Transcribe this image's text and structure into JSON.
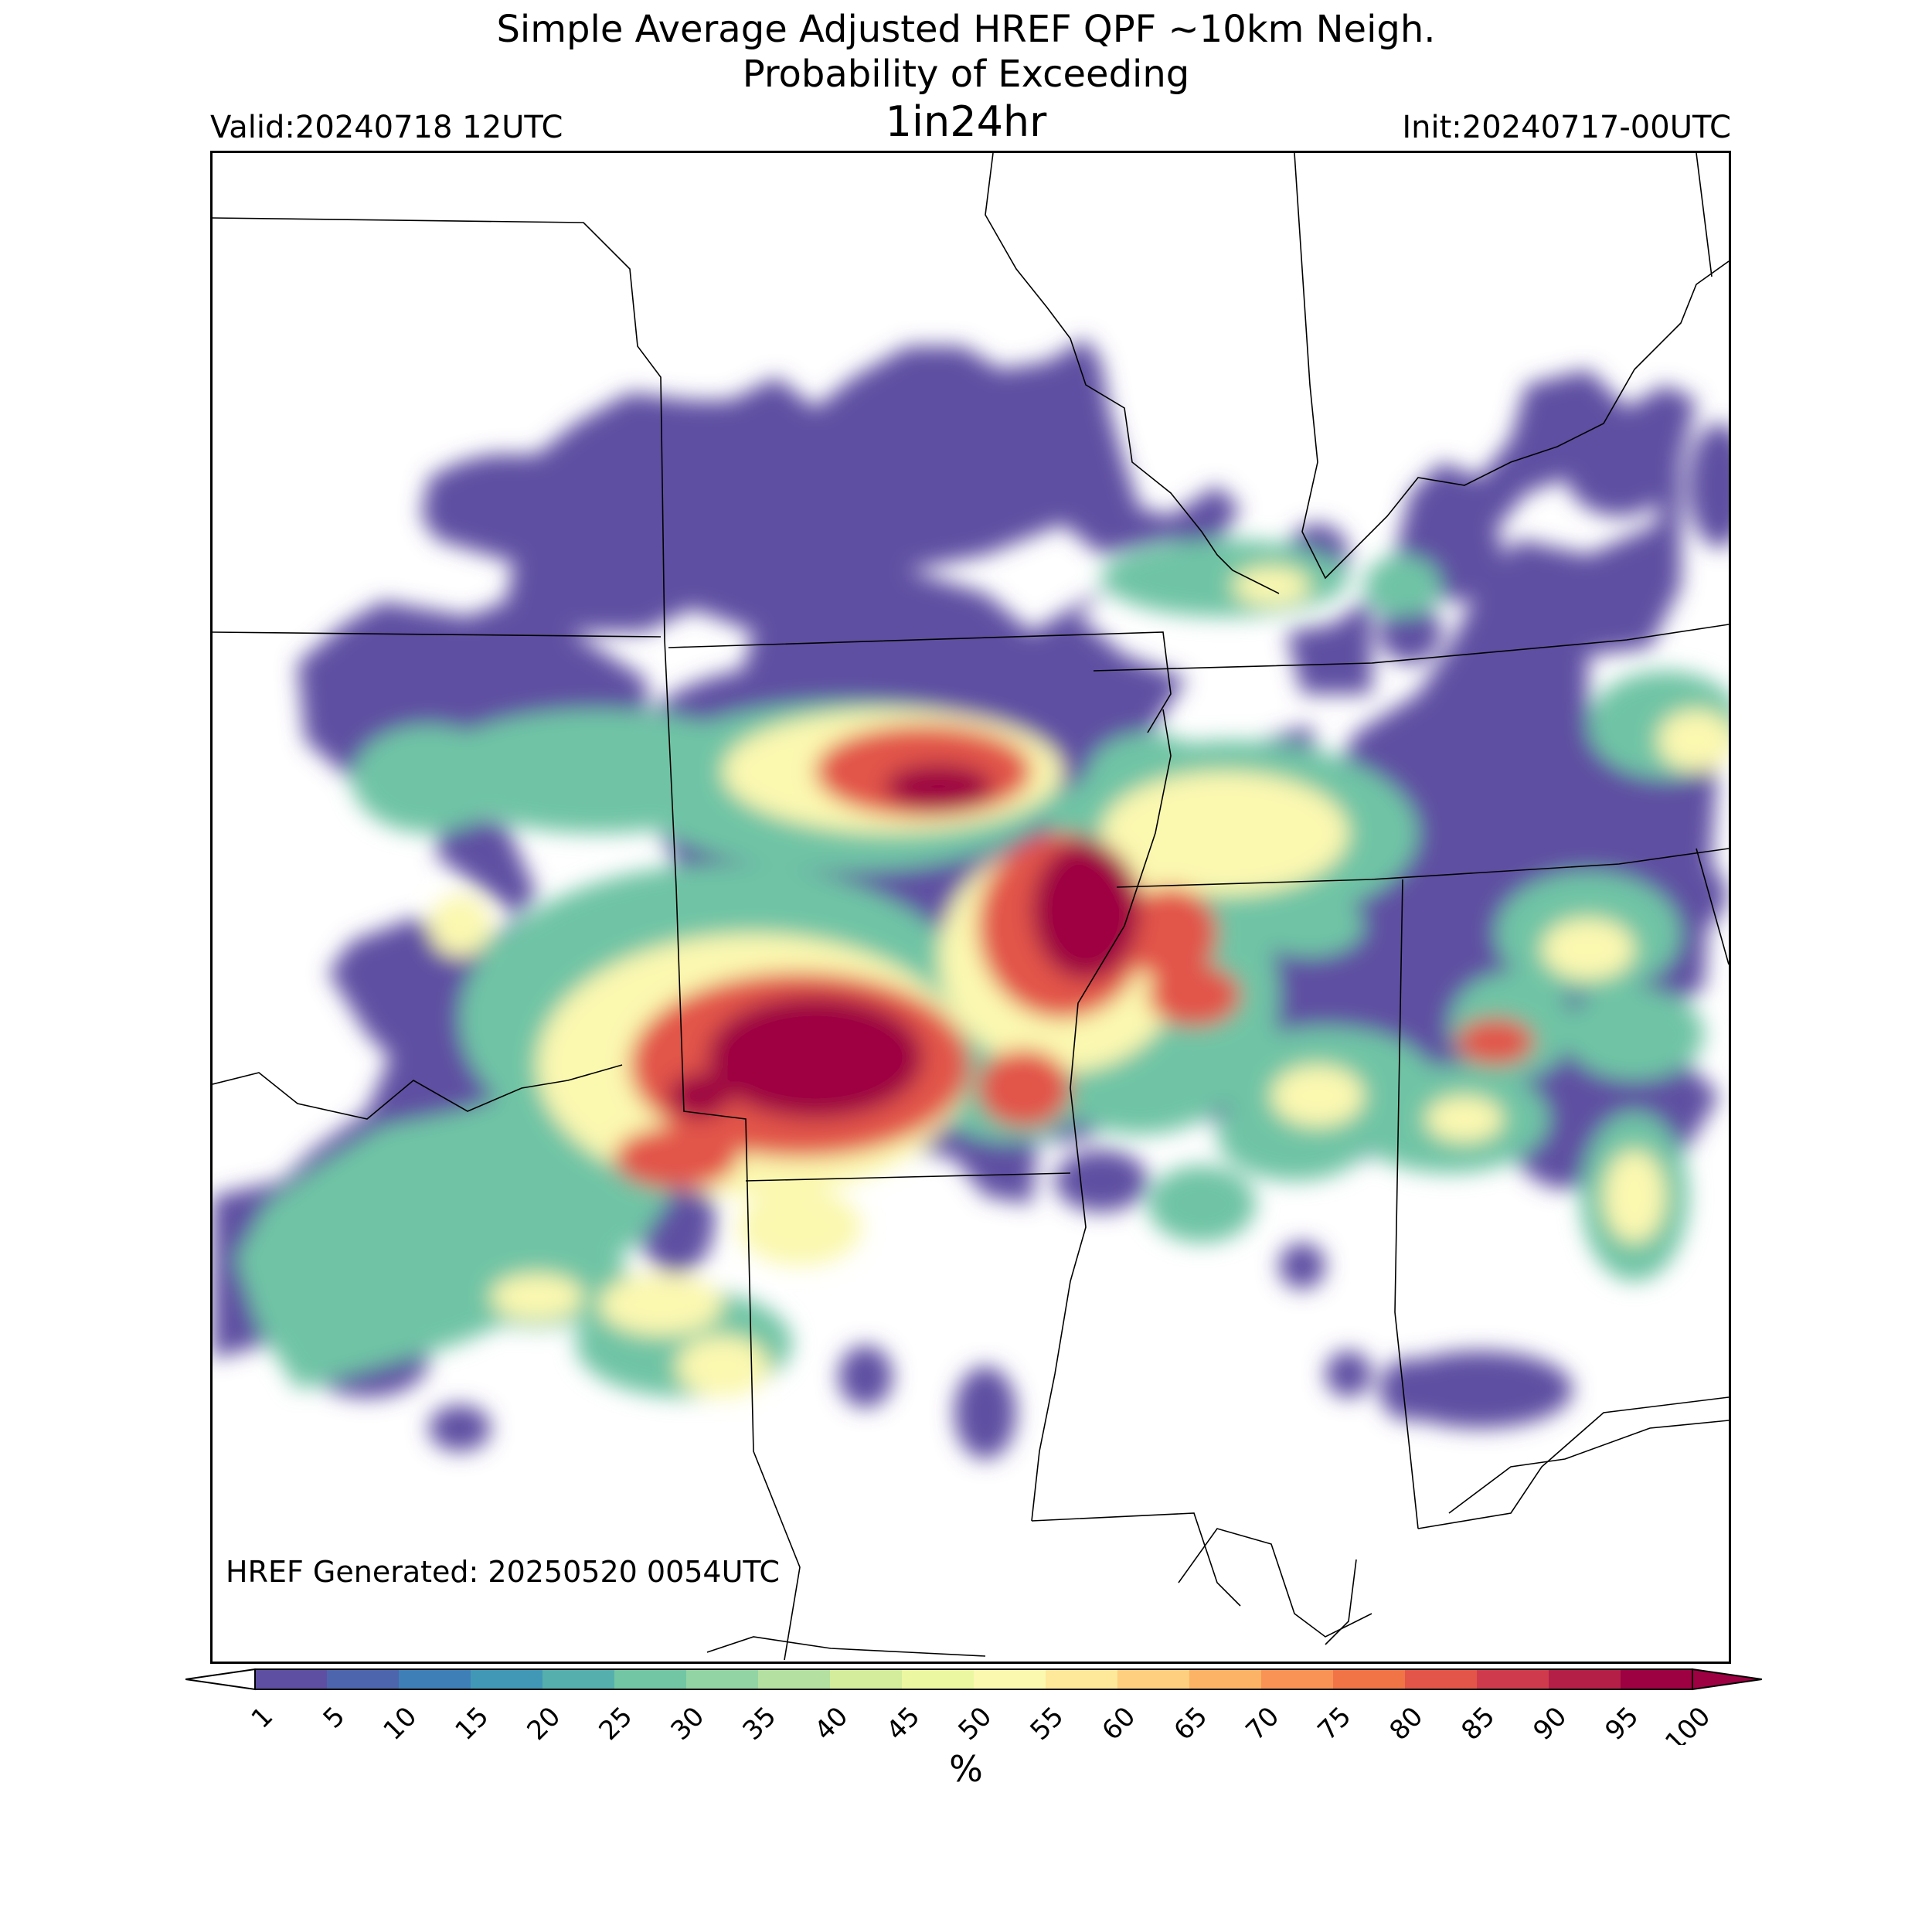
{
  "header": {
    "title_line1": "Simple Average Adjusted HREF QPF ~10km Neigh.",
    "title_line2": "Probability of Exceeding",
    "title_line3": "1in24hr",
    "valid": "Valid:20240718 12UTC",
    "init": "Init:20240717-00UTC"
  },
  "footer": {
    "generated": "HREF Generated: 20250520 0054UTC"
  },
  "colorbar": {
    "unit_label": "%",
    "levels": [
      "1",
      "5",
      "10",
      "15",
      "20",
      "25",
      "30",
      "35",
      "40",
      "45",
      "50",
      "55",
      "60",
      "65",
      "70",
      "75",
      "80",
      "85",
      "90",
      "95",
      "100"
    ],
    "colors": [
      "#5e4fa2",
      "#4d65ad",
      "#3f7fb8",
      "#4198b6",
      "#55b0ad",
      "#72c6a4",
      "#93d4a4",
      "#b4e1a1",
      "#d3ed9c",
      "#ecf7a1",
      "#fbf8b0",
      "#fee89a",
      "#fdcf7e",
      "#fdb365",
      "#f99355",
      "#f17447",
      "#e25548",
      "#cf3b4d",
      "#b41f48",
      "#9e0142"
    ]
  },
  "map": {
    "region": "South-central United States",
    "overlay_colors": {
      "low": "#5e4fa2",
      "mid": "#ecf7a1",
      "high": "#9e0142"
    }
  }
}
